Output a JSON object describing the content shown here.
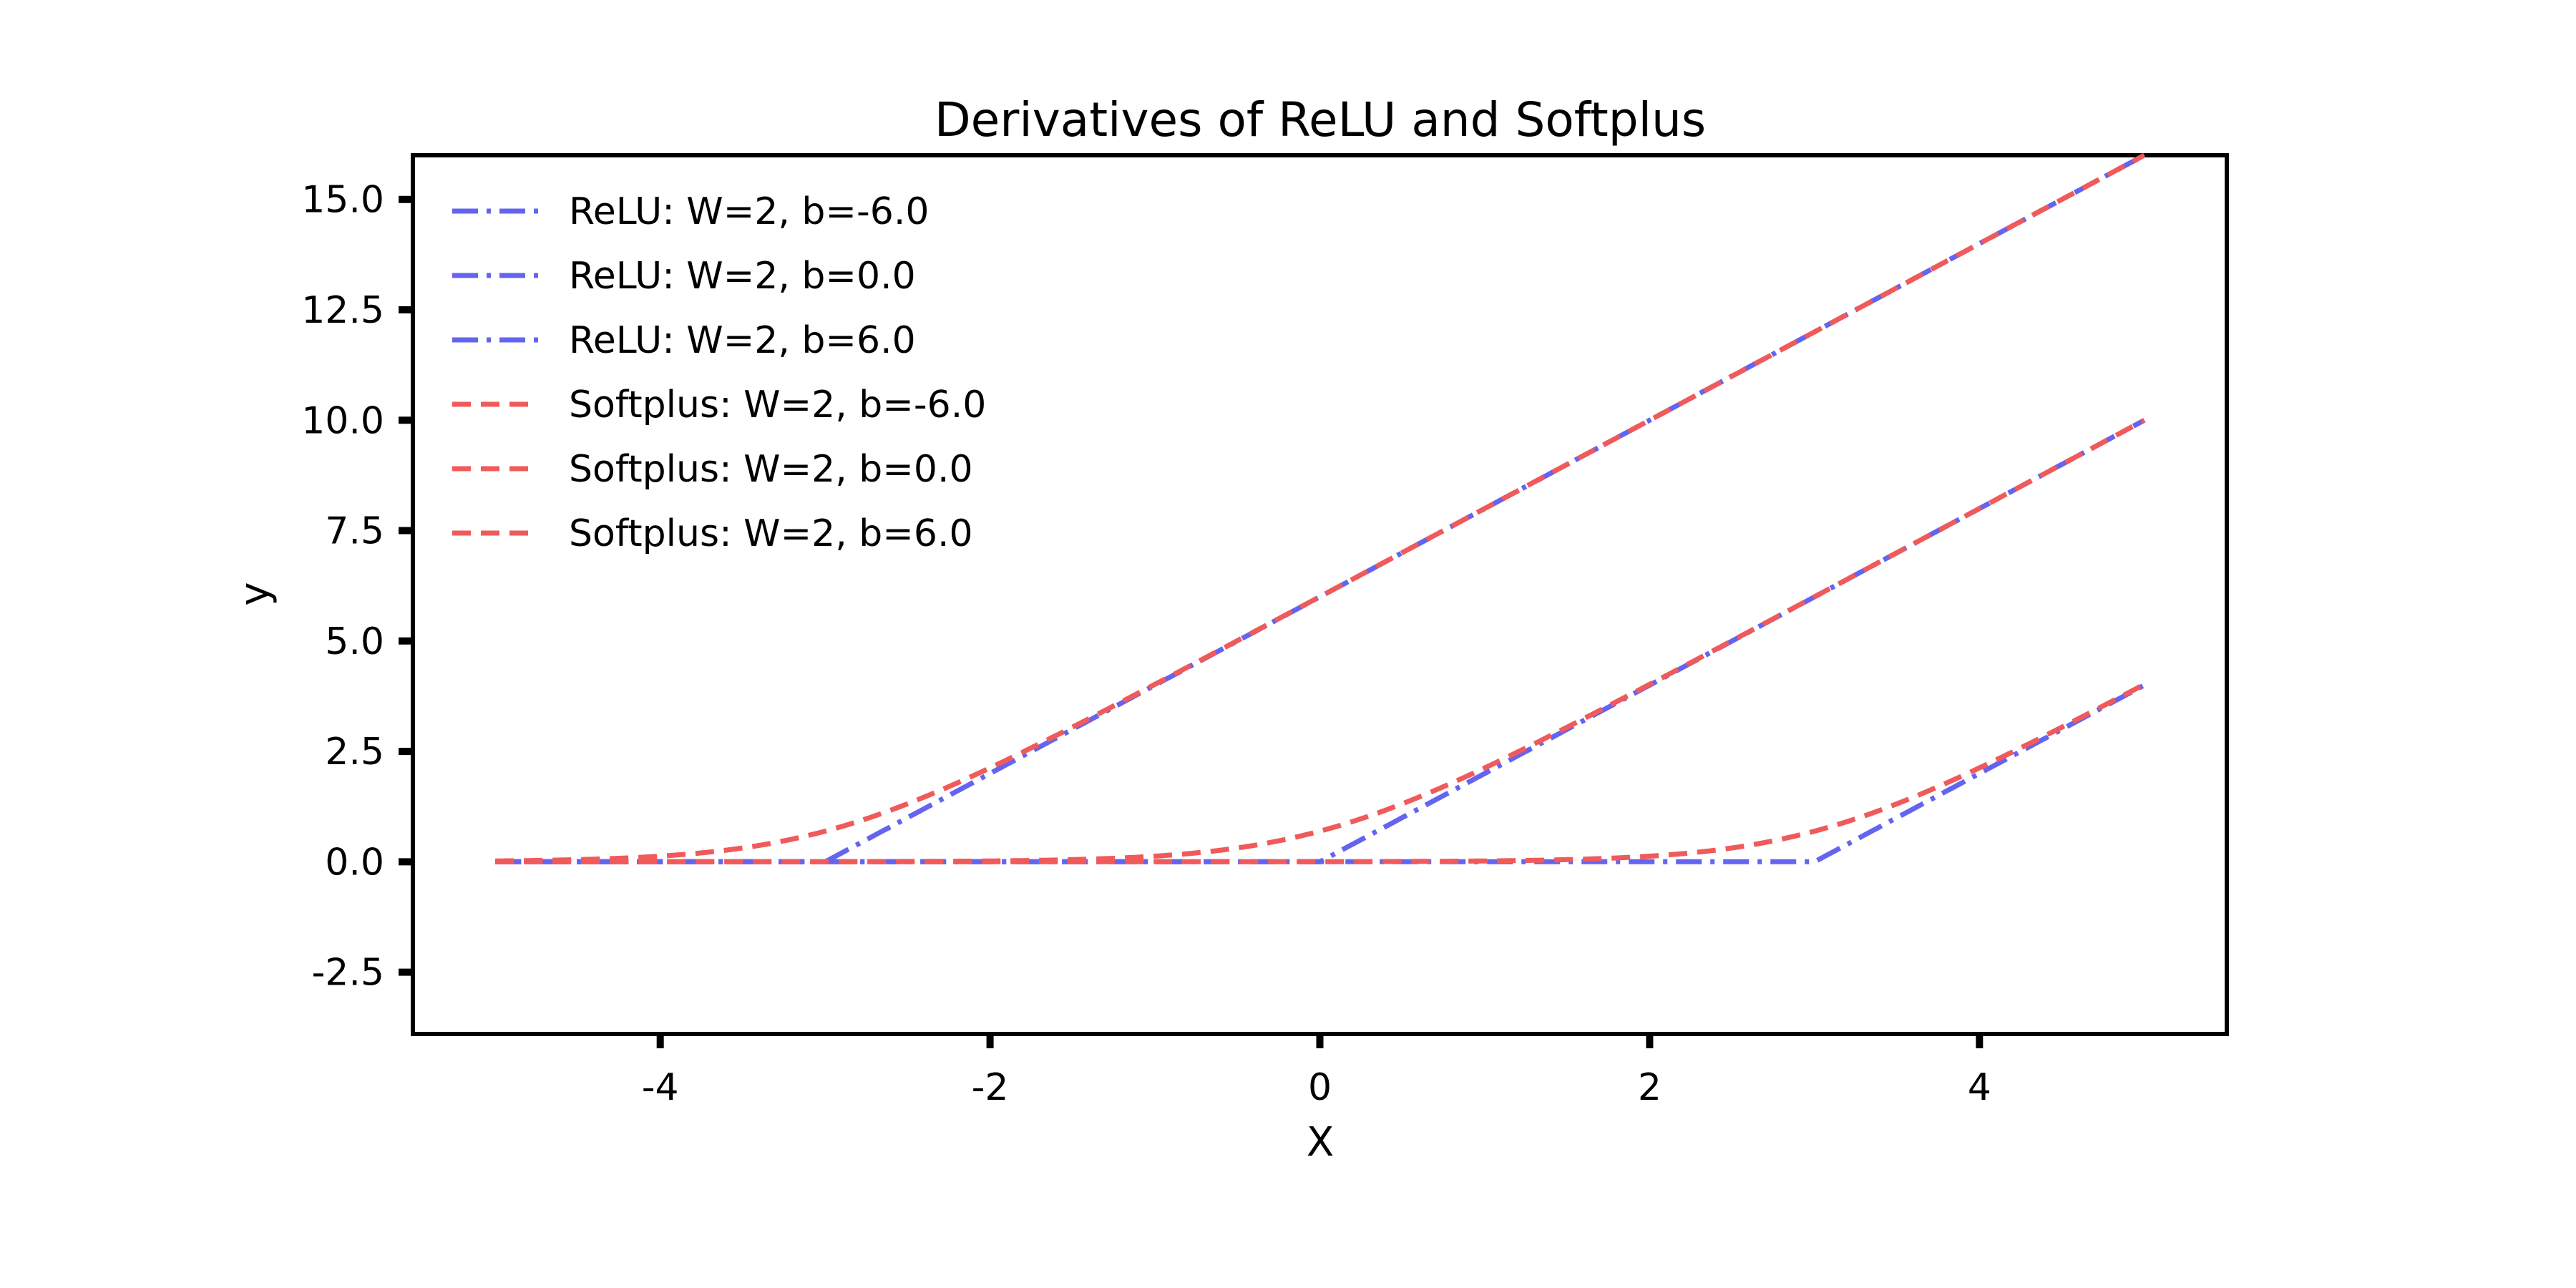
{
  "chart_data": {
    "type": "line",
    "title": "Derivatives of ReLU and Softplus",
    "xlabel": "X",
    "ylabel": "y",
    "xlim": [
      -5.5,
      5.5
    ],
    "ylim": [
      -3.9,
      16.0
    ],
    "x_ticks": [
      -4,
      -2,
      0,
      2,
      4
    ],
    "x_tick_labels": [
      "-4",
      "-2",
      "0",
      "2",
      "4"
    ],
    "y_ticks": [
      -2.5,
      0.0,
      2.5,
      5.0,
      7.5,
      10.0,
      12.5,
      15.0
    ],
    "y_tick_labels": [
      "-2.5",
      "0.0",
      "2.5",
      "5.0",
      "7.5",
      "10.0",
      "12.5",
      "15.0"
    ],
    "grid": false,
    "legend_position": "top-left",
    "x_range": [
      -5,
      5
    ],
    "series": [
      {
        "name": "ReLU: W=2, b=-6.0",
        "function": "relu",
        "W": 2,
        "b": -6.0,
        "color": "#6464f0",
        "dash": "dashdot"
      },
      {
        "name": "ReLU: W=2, b=0.0",
        "function": "relu",
        "W": 2,
        "b": 0.0,
        "color": "#6464f0",
        "dash": "dashdot"
      },
      {
        "name": "ReLU: W=2, b=6.0",
        "function": "relu",
        "W": 2,
        "b": 6.0,
        "color": "#6464f0",
        "dash": "dashdot"
      },
      {
        "name": "Softplus: W=2, b=-6.0",
        "function": "softplus",
        "W": 2,
        "b": -6.0,
        "color": "#f05a5a",
        "dash": "dashed"
      },
      {
        "name": "Softplus: W=2, b=0.0",
        "function": "softplus",
        "W": 2,
        "b": 0.0,
        "color": "#f05a5a",
        "dash": "dashed"
      },
      {
        "name": "Softplus: W=2, b=6.0",
        "function": "softplus",
        "W": 2,
        "b": 6.0,
        "color": "#f05a5a",
        "dash": "dashed"
      }
    ]
  }
}
